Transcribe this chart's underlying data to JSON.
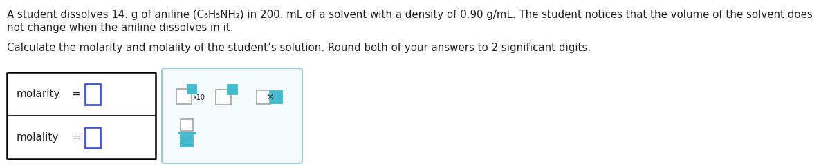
{
  "text_line1a": "A student dissolves 14. g of aniline ",
  "text_formula": "(C₆H₅NH₂)",
  "text_line1b": " in 200. mL of a solvent with a density of 0.90 g/mL. The student notices that the volume of the solvent does",
  "text_line2": "not change when the aniline dissolves in it.",
  "text_line3": "Calculate the molarity and molality of the student’s solution. Round both of your answers to 2 significant digits.",
  "label_molarity": "molarity",
  "label_molality": "molality",
  "equals": "=",
  "x10_label": "x10",
  "bg_color": "#ffffff",
  "text_color": "#222222",
  "box_blue": "#4455cc",
  "box_teal": "#44bbcc",
  "box_gray": "#aaaaaa",
  "panel_border": "#99ccdd",
  "panel_bg": "#f5fafc",
  "left_panel_border": "#000000",
  "frac_line_color": "#44bbcc"
}
